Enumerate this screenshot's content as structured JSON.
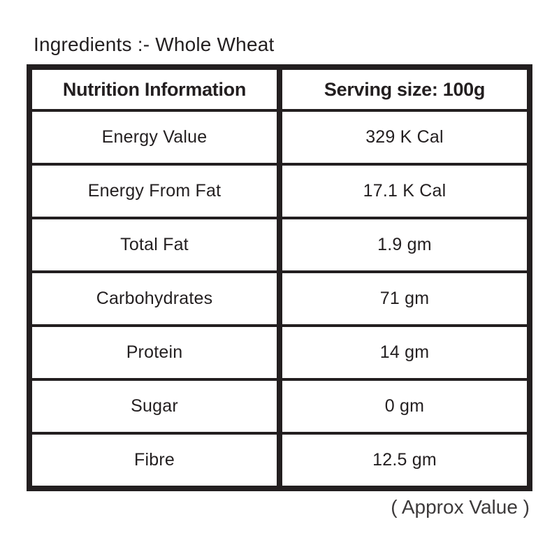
{
  "page": {
    "ingredients_label": "Ingredients :- Whole Wheat",
    "approx_note": "( Approx Value )"
  },
  "colors": {
    "ink": "#231f20",
    "background": "#ffffff"
  },
  "table": {
    "header": {
      "col1": "Nutrition Information",
      "col2": "Serving size: 100g"
    },
    "rows": [
      {
        "label": "Energy Value",
        "value": "329 K Cal"
      },
      {
        "label": "Energy From Fat",
        "value": "17.1 K Cal"
      },
      {
        "label": "Total Fat",
        "value": "1.9 gm"
      },
      {
        "label": "Carbohydrates",
        "value": "71 gm"
      },
      {
        "label": "Protein",
        "value": "14 gm"
      },
      {
        "label": "Sugar",
        "value": "0 gm"
      },
      {
        "label": "Fibre",
        "value": "12.5 gm"
      }
    ]
  }
}
